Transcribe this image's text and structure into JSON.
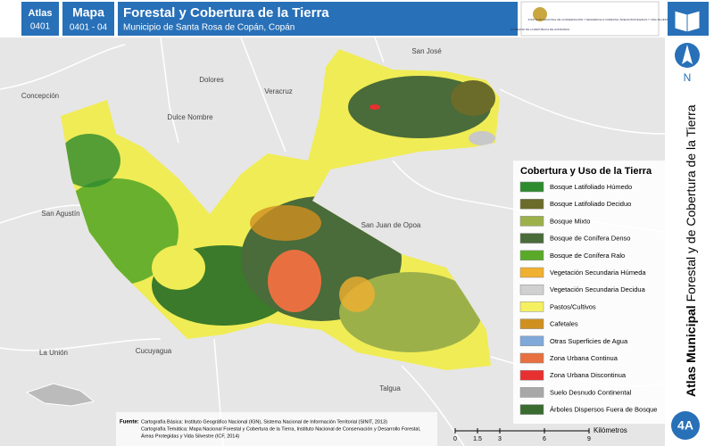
{
  "header": {
    "atlas_label": "Atlas",
    "atlas_code": "0401",
    "map_label": "Mapa",
    "map_code": "0401 - 04",
    "title": "Forestal y Cobertura de la Tierra",
    "subtitle": "Municipio de Santa Rosa de Copán, Copán",
    "logo_left": "GOBIERNO DE LA REPÚBLICA DE HONDURAS",
    "logo_right": "INSTITUTO NACIONAL DE CONSERVACIÓN Y DESARROLLO FORESTAL ÁREAS PROTEGIDAS Y VIDA SILVESTRE ICF"
  },
  "places": [
    "San José",
    "Concepción",
    "Dolores",
    "Veracruz",
    "Dulce Nombre",
    "San Agustín",
    "San Juan de Opoa",
    "La Unión",
    "Cucuyagua",
    "Talgua"
  ],
  "legend": {
    "title": "Cobertura y Uso de la Tierra",
    "items": [
      {
        "label": "Bosque Latifoliado Húmedo",
        "color": "#2e8b2e"
      },
      {
        "label": "Bosque Latifoliado Deciduo",
        "color": "#6b6b2a"
      },
      {
        "label": "Bosque Mixto",
        "color": "#9cb04a"
      },
      {
        "label": "Bosque de Conífera Denso",
        "color": "#4a6b3a"
      },
      {
        "label": "Bosque de Conífera Ralo",
        "color": "#5aaa2a"
      },
      {
        "label": "Vegetación Secundaria Húmeda",
        "color": "#f0b030"
      },
      {
        "label": "Vegetación Secundaria Decidua",
        "color": "#d0d0d0"
      },
      {
        "label": "Pastos/Cultivos",
        "color": "#f5f060"
      },
      {
        "label": "Cafetales",
        "color": "#d09020"
      },
      {
        "label": "Otras Superficies de Agua",
        "color": "#80a8d8"
      },
      {
        "label": "Zona Urbana Continua",
        "color": "#e87040"
      },
      {
        "label": "Zona Urbana Discontinua",
        "color": "#e83030"
      },
      {
        "label": "Suelo Desnudo Continental",
        "color": "#a8a8a8"
      },
      {
        "label": "Árboles Dispersos Fuera de Bosque",
        "color": "#3a6b30"
      }
    ]
  },
  "side": {
    "north": "N",
    "atlas_municipal": "Atlas Municipal",
    "side_title": "Forestal y de Cobertura de la Tierra",
    "sheet": "4A"
  },
  "source": {
    "label": "Fuente:",
    "lines": [
      "Cartografía Básica: Instituto Geográfico Nacional (IGN), Sistema Nacional de Información Territorial (SINIT, 2013)",
      "Cartografía Temática: Mapa Nacional Forestal y Cobertura de la Tierra, Instituto Nacional de Conservación y Desarrollo Forestal,",
      "Áreas Protegidas y Vida Silvestre (ICF, 2014)"
    ]
  },
  "scale": {
    "ticks": [
      0,
      1.5,
      3,
      6,
      9
    ],
    "unit": "Kilómetros"
  }
}
